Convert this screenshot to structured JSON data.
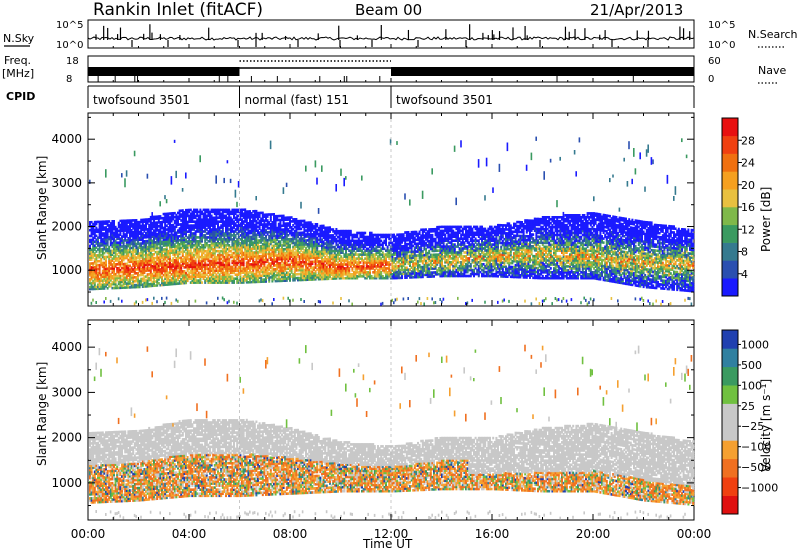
{
  "header": {
    "station": "Rankin Inlet (fitACF)",
    "beam": "Beam 00",
    "date": "21/Apr/2013"
  },
  "strip_labels": {
    "nsky": "N.Sky",
    "nsearch": "N.Search",
    "freq": "Freq.",
    "freq_unit": "[MHz]",
    "nave": "Nave",
    "cpid": "CPID",
    "nsky_ticks": [
      "10^5",
      "10^0"
    ],
    "nsearch_ticks": [
      "10^5",
      "10^0"
    ],
    "freq_ticks": [
      "18",
      "8"
    ],
    "nave_ticks": [
      "60",
      "0"
    ]
  },
  "cpid_segments": [
    {
      "label": "twofsound 3501",
      "start_h": 0,
      "end_h": 6
    },
    {
      "label": "normal (fast) 151",
      "start_h": 6,
      "end_h": 12
    },
    {
      "label": "twofsound 3501",
      "start_h": 12,
      "end_h": 24
    }
  ],
  "colors": {
    "power_scale": [
      "#1a1aff",
      "#2a4fb0",
      "#357a8f",
      "#3a9a60",
      "#7fb84a",
      "#e8c040",
      "#f5a020",
      "#f07010",
      "#f04010",
      "#e81010"
    ],
    "velocity_scale": [
      "#e01010",
      "#f04010",
      "#f07020",
      "#f5a030",
      "#c8c8c8",
      "#c8c8c8",
      "#70c040",
      "#3a9a60",
      "#3080a0",
      "#2040b0"
    ]
  },
  "chart_data": [
    {
      "type": "heatmap",
      "name": "power",
      "xlabel": "Time UT",
      "ylabel": "Slant Range [km]",
      "x_ticks": [
        "00:00",
        "04:00",
        "08:00",
        "12:00",
        "16:00",
        "20:00",
        "00:00"
      ],
      "x_range_hours": [
        0,
        24
      ],
      "y_ticks": [
        1000,
        2000,
        3000,
        4000
      ],
      "ylim": [
        180,
        4600
      ],
      "colorbar_label": "Power [dB]",
      "colorbar_ticks": [
        "4",
        "8",
        "12",
        "16",
        "20",
        "24",
        "28"
      ],
      "colorbar_range": [
        0,
        32
      ],
      "band_profile": [
        {
          "h": 0,
          "lower": 550,
          "upper": 2100,
          "core": 1000
        },
        {
          "h": 2,
          "lower": 600,
          "upper": 2150,
          "core": 1050
        },
        {
          "h": 4,
          "lower": 700,
          "upper": 2400,
          "core": 1100
        },
        {
          "h": 6,
          "lower": 700,
          "upper": 2400,
          "core": 1150
        },
        {
          "h": 8,
          "lower": 750,
          "upper": 2200,
          "core": 1200
        },
        {
          "h": 10,
          "lower": 800,
          "upper": 1900,
          "core": 1050
        },
        {
          "h": 12,
          "lower": 800,
          "upper": 1800,
          "core": 1100
        },
        {
          "h": 14,
          "lower": 850,
          "upper": 2000,
          "core": 1200
        },
        {
          "h": 16,
          "lower": 850,
          "upper": 2000,
          "core": 1300
        },
        {
          "h": 18,
          "lower": 800,
          "upper": 2200,
          "core": 1350
        },
        {
          "h": 20,
          "lower": 800,
          "upper": 2300,
          "core": 1300
        },
        {
          "h": 22,
          "lower": 600,
          "upper": 2100,
          "core": 1150
        },
        {
          "h": 24,
          "lower": 500,
          "upper": 1900,
          "core": 1100
        }
      ]
    },
    {
      "type": "heatmap",
      "name": "velocity",
      "xlabel": "Time UT",
      "ylabel": "Slant Range [km]",
      "x_ticks": [
        "00:00",
        "04:00",
        "08:00",
        "12:00",
        "16:00",
        "20:00",
        "00:00"
      ],
      "x_range_hours": [
        0,
        24
      ],
      "y_ticks": [
        1000,
        2000,
        3000,
        4000
      ],
      "ylim": [
        180,
        4600
      ],
      "colorbar_label": "Velocity [m s⁻¹]",
      "colorbar_ticks": [
        "1000",
        "500",
        "100",
        "25",
        "−25",
        "−100",
        "−500",
        "−1000"
      ],
      "colorbar_range": [
        -1000,
        1000
      ]
    }
  ]
}
